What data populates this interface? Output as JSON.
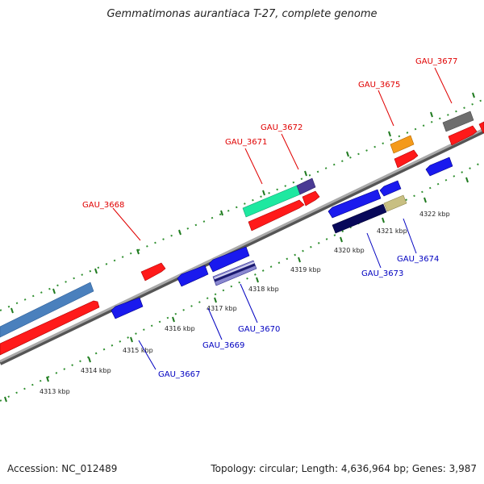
{
  "title": "Gemmatimonas aurantiaca T-27, complete genome",
  "footer": {
    "accession": "Accession: NC_012489",
    "summary": "Topology: circular; Length: 4,636,964 bp; Genes: 3,987"
  },
  "colors": {
    "backbone": "#8c8c8c",
    "forward_gene": "#ff1a1a",
    "reverse_gene": "#1a1aee",
    "forward_label": "#e00000",
    "reverse_label": "#0000c0",
    "grid_dots": "#2f8f2f"
  },
  "kbp_labels": [
    "4313 kbp",
    "4314 kbp",
    "4315 kbp",
    "4316 kbp",
    "4317 kbp",
    "4318 kbp",
    "4319 kbp",
    "4320 kbp",
    "4321 kbp",
    "4322 kbp"
  ],
  "genes_forward": [
    {
      "label": "GAU_3668"
    },
    {
      "label": "GAU_3671"
    },
    {
      "label": "GAU_3672"
    },
    {
      "label": "GAU_3675"
    },
    {
      "label": "GAU_3677"
    }
  ],
  "genes_reverse": [
    {
      "label": "GAU_3667"
    },
    {
      "label": "GAU_3669"
    },
    {
      "label": "GAU_3670"
    },
    {
      "label": "GAU_3673"
    },
    {
      "label": "GAU_3674"
    }
  ]
}
